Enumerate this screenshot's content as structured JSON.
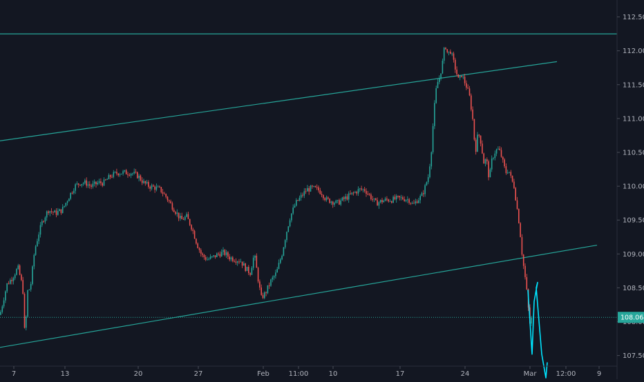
{
  "chart_data": {
    "type": "candlestick",
    "y_axis": {
      "side": "right",
      "ylim": [
        107.15,
        112.75
      ],
      "ticks": [
        "112.500",
        "112.000",
        "111.500",
        "111.000",
        "110.500",
        "110.000",
        "109.500",
        "109.000",
        "108.500",
        "108.000",
        "107.500"
      ],
      "tick_values": [
        112.5,
        112.0,
        111.5,
        111.0,
        110.5,
        110.0,
        109.5,
        109.0,
        108.5,
        108.0,
        107.5
      ]
    },
    "x_axis": {
      "labels": [
        "7",
        "13",
        "20",
        "27",
        "Feb",
        "11:00",
        "10",
        "17",
        "24",
        "Mar",
        "12:00",
        "9"
      ]
    },
    "current_price": {
      "label": "108.064",
      "value": 108.064
    },
    "colors": {
      "up": "#26a69a",
      "down": "#ef5350",
      "drawing": "#26a69a",
      "forecast": "#00e5ff",
      "background": "#131722",
      "grid_text": "#b2b5be",
      "price_tag_bg": "#26a69a"
    },
    "price_path": [
      [
        0,
        108.1
      ],
      [
        10,
        108.55
      ],
      [
        18,
        108.65
      ],
      [
        26,
        108.8
      ],
      [
        33,
        108.5
      ],
      [
        36,
        107.75
      ],
      [
        40,
        108.45
      ],
      [
        44,
        108.5
      ],
      [
        50,
        109.05
      ],
      [
        56,
        109.3
      ],
      [
        62,
        109.5
      ],
      [
        70,
        109.65
      ],
      [
        80,
        109.6
      ],
      [
        90,
        109.65
      ],
      [
        100,
        109.85
      ],
      [
        108,
        110.0
      ],
      [
        116,
        110.05
      ],
      [
        124,
        110.05
      ],
      [
        132,
        110.0
      ],
      [
        142,
        110.05
      ],
      [
        150,
        110.05
      ],
      [
        160,
        110.15
      ],
      [
        170,
        110.2
      ],
      [
        180,
        110.2
      ],
      [
        190,
        110.2
      ],
      [
        200,
        110.15
      ],
      [
        208,
        110.05
      ],
      [
        216,
        110.0
      ],
      [
        224,
        109.98
      ],
      [
        232,
        109.95
      ],
      [
        240,
        109.85
      ],
      [
        248,
        109.72
      ],
      [
        256,
        109.6
      ],
      [
        262,
        109.5
      ],
      [
        270,
        109.55
      ],
      [
        278,
        109.38
      ],
      [
        285,
        109.15
      ],
      [
        292,
        108.98
      ],
      [
        300,
        108.92
      ],
      [
        308,
        108.95
      ],
      [
        316,
        109.0
      ],
      [
        324,
        109.02
      ],
      [
        332,
        108.95
      ],
      [
        340,
        108.92
      ],
      [
        348,
        108.9
      ],
      [
        356,
        108.78
      ],
      [
        362,
        108.72
      ],
      [
        368,
        109.0
      ],
      [
        374,
        108.6
      ],
      [
        378,
        108.35
      ],
      [
        384,
        108.42
      ],
      [
        392,
        108.6
      ],
      [
        400,
        108.72
      ],
      [
        408,
        109.0
      ],
      [
        414,
        109.3
      ],
      [
        420,
        109.55
      ],
      [
        428,
        109.75
      ],
      [
        436,
        109.85
      ],
      [
        444,
        109.95
      ],
      [
        452,
        109.97
      ],
      [
        460,
        109.95
      ],
      [
        466,
        109.9
      ],
      [
        472,
        109.8
      ],
      [
        480,
        109.78
      ],
      [
        488,
        109.75
      ],
      [
        496,
        109.8
      ],
      [
        504,
        109.85
      ],
      [
        512,
        109.9
      ],
      [
        520,
        109.95
      ],
      [
        528,
        109.95
      ],
      [
        536,
        109.85
      ],
      [
        544,
        109.75
      ],
      [
        552,
        109.78
      ],
      [
        560,
        109.8
      ],
      [
        568,
        109.8
      ],
      [
        576,
        109.82
      ],
      [
        584,
        109.82
      ],
      [
        592,
        109.8
      ],
      [
        598,
        109.72
      ],
      [
        604,
        109.8
      ],
      [
        610,
        109.85
      ],
      [
        614,
        109.95
      ],
      [
        620,
        110.15
      ],
      [
        624,
        110.5
      ],
      [
        628,
        111.1
      ],
      [
        632,
        111.5
      ],
      [
        636,
        111.6
      ],
      [
        640,
        111.8
      ],
      [
        644,
        112.1
      ],
      [
        648,
        111.95
      ],
      [
        652,
        112.0
      ],
      [
        656,
        111.85
      ],
      [
        660,
        111.7
      ],
      [
        664,
        111.55
      ],
      [
        668,
        111.65
      ],
      [
        672,
        111.55
      ],
      [
        676,
        111.45
      ],
      [
        680,
        111.3
      ],
      [
        684,
        111.0
      ],
      [
        688,
        110.5
      ],
      [
        692,
        110.8
      ],
      [
        696,
        110.65
      ],
      [
        700,
        110.35
      ],
      [
        704,
        110.4
      ],
      [
        708,
        110.1
      ],
      [
        712,
        110.4
      ],
      [
        716,
        110.5
      ],
      [
        720,
        110.55
      ],
      [
        724,
        110.5
      ],
      [
        728,
        110.35
      ],
      [
        732,
        110.2
      ],
      [
        736,
        110.25
      ],
      [
        740,
        110.1
      ],
      [
        744,
        110.0
      ],
      [
        748,
        109.7
      ],
      [
        752,
        109.4
      ],
      [
        756,
        108.95
      ],
      [
        760,
        108.65
      ],
      [
        764,
        108.3
      ],
      [
        766,
        107.95
      ],
      [
        770,
        108.06
      ]
    ],
    "drawings": {
      "horizontal_level": 112.25,
      "current_level": 108.064,
      "channel_upper": {
        "from": [
          0,
          110.67
        ],
        "to": [
          806,
          111.84
        ]
      },
      "channel_lower": {
        "from": [
          0,
          107.62
        ],
        "to": [
          864,
          109.13
        ]
      },
      "forecast_path": [
        [
          764,
          108.47
        ],
        [
          770,
          107.52
        ],
        [
          773,
          108.3
        ],
        [
          778,
          108.58
        ],
        [
          776,
          108.5
        ],
        [
          784,
          107.52
        ],
        [
          790,
          107.17
        ],
        [
          792,
          107.4
        ]
      ]
    }
  }
}
